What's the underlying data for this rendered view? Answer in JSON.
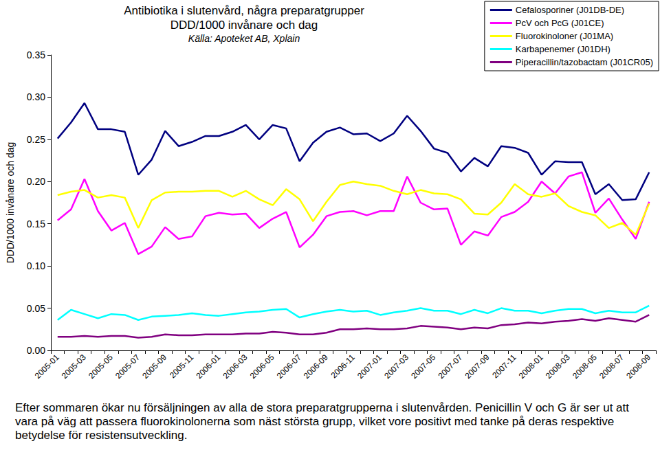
{
  "chart_data": {
    "type": "line",
    "title": "Antibiotika i slutenvård, några preparatgrupper",
    "subtitle": "DDD/1000 invånare och dag",
    "source": "Källa: Apoteket AB, Xplain",
    "ylabel": "DDD/1000 invånare och dag",
    "annotation": "Efter sommaren ökar nu försäljningen av alla de stora preparatgrupperna i slutenvården. Penicillin V och G är ser ut att vara på väg att passera fluorokinolonerna som näst största grupp, vilket vore positivt med tanke på deras respektive betydelse för resistensutveckling.",
    "categories": [
      "2005-01",
      null,
      "2005-03",
      null,
      "2005-05",
      null,
      "2005-07",
      null,
      "2005-09",
      null,
      "2005-11",
      null,
      "2006-01",
      null,
      "2006-03",
      null,
      "2006-05",
      null,
      "2006-07",
      null,
      "2006-09",
      null,
      "2006-11",
      null,
      "2007-01",
      null,
      "2007-03",
      null,
      "2007-05",
      null,
      "2007-07",
      null,
      "2007-09",
      null,
      "2007-11",
      null,
      "2008-01",
      null,
      "2008-03",
      null,
      "2008-05",
      null,
      "2008-07",
      null,
      "2008-09"
    ],
    "series": [
      {
        "name": "Cefalosporiner (J01DB-DE)",
        "color": "#000080",
        "values": [
          0.251,
          0.27,
          0.293,
          0.262,
          0.262,
          0.259,
          0.208,
          0.226,
          0.26,
          0.242,
          0.247,
          0.254,
          0.254,
          0.259,
          0.267,
          0.25,
          0.267,
          0.263,
          0.224,
          0.246,
          0.259,
          0.264,
          0.256,
          0.257,
          0.248,
          0.257,
          0.278,
          0.26,
          0.239,
          0.234,
          0.212,
          0.228,
          0.218,
          0.242,
          0.24,
          0.234,
          0.208,
          0.224,
          0.223,
          0.223,
          0.185,
          0.197,
          0.178,
          0.179,
          0.211
        ]
      },
      {
        "name": "PcV och PcG (J01CE)",
        "color": "#ff00ff",
        "values": [
          0.154,
          0.167,
          0.203,
          0.165,
          0.142,
          0.151,
          0.114,
          0.123,
          0.146,
          0.132,
          0.135,
          0.159,
          0.163,
          0.161,
          0.162,
          0.145,
          0.156,
          0.164,
          0.122,
          0.137,
          0.159,
          0.164,
          0.165,
          0.16,
          0.165,
          0.165,
          0.206,
          0.175,
          0.167,
          0.168,
          0.125,
          0.141,
          0.136,
          0.158,
          0.164,
          0.176,
          0.2,
          0.186,
          0.206,
          0.211,
          0.163,
          0.18,
          0.155,
          0.132,
          0.176
        ]
      },
      {
        "name": "Fluorokinoloner (J01MA)",
        "color": "#ffff00",
        "values": [
          0.184,
          0.188,
          0.19,
          0.181,
          0.184,
          0.181,
          0.145,
          0.178,
          0.187,
          0.188,
          0.188,
          0.189,
          0.189,
          0.182,
          0.189,
          0.179,
          0.172,
          0.191,
          0.179,
          0.153,
          0.176,
          0.196,
          0.2,
          0.197,
          0.195,
          0.189,
          0.185,
          0.19,
          0.186,
          0.185,
          0.179,
          0.162,
          0.161,
          0.175,
          0.197,
          0.185,
          0.182,
          0.186,
          0.171,
          0.164,
          0.16,
          0.145,
          0.151,
          0.137,
          0.174
        ]
      },
      {
        "name": "Karbapenemer (J01DH)",
        "color": "#00ffff",
        "values": [
          0.036,
          0.048,
          0.043,
          0.038,
          0.043,
          0.042,
          0.036,
          0.04,
          0.041,
          0.042,
          0.044,
          0.042,
          0.041,
          0.043,
          0.045,
          0.046,
          0.048,
          0.049,
          0.039,
          0.043,
          0.046,
          0.048,
          0.046,
          0.047,
          0.042,
          0.045,
          0.047,
          0.05,
          0.047,
          0.047,
          0.043,
          0.048,
          0.044,
          0.05,
          0.047,
          0.047,
          0.044,
          0.047,
          0.049,
          0.049,
          0.044,
          0.047,
          0.045,
          0.045,
          0.053
        ]
      },
      {
        "name": "Piperacillin/tazobactam (J01CR05)",
        "color": "#800080",
        "values": [
          0.016,
          0.016,
          0.017,
          0.016,
          0.017,
          0.017,
          0.015,
          0.016,
          0.019,
          0.018,
          0.018,
          0.019,
          0.019,
          0.019,
          0.02,
          0.02,
          0.022,
          0.021,
          0.019,
          0.019,
          0.021,
          0.025,
          0.025,
          0.026,
          0.025,
          0.025,
          0.026,
          0.029,
          0.028,
          0.027,
          0.025,
          0.027,
          0.026,
          0.03,
          0.031,
          0.033,
          0.032,
          0.034,
          0.035,
          0.037,
          0.035,
          0.038,
          0.036,
          0.034,
          0.042
        ]
      }
    ],
    "ylim": [
      0,
      0.35
    ],
    "yticks": [
      {
        "value": 0,
        "label": "0.00"
      },
      0.05,
      {
        "value": 0.1,
        "label": "0.10"
      },
      0.15,
      {
        "value": 0.2,
        "label": "0.20"
      },
      0.25,
      {
        "value": 0.3,
        "label": "0.30"
      },
      0.35
    ],
    "grid": false,
    "legend": "top-right"
  }
}
